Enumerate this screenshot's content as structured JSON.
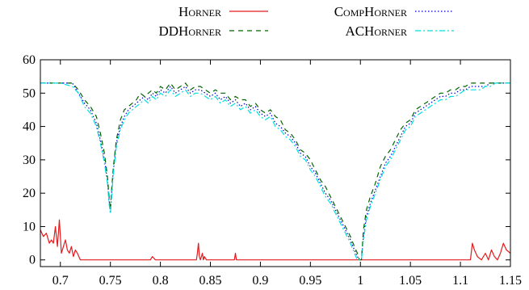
{
  "chart_data": {
    "type": "line",
    "title": "",
    "xlabel": "",
    "ylabel": "",
    "xlim": [
      0.68,
      1.15
    ],
    "ylim": [
      -2,
      60
    ],
    "xticks": [
      "0.7",
      "0.75",
      "0.8",
      "0.85",
      "0.9",
      "0.95",
      "1",
      "1.05",
      "1.1",
      "1.15"
    ],
    "yticks": [
      "0",
      "10",
      "20",
      "30",
      "40",
      "50",
      "60"
    ],
    "grid": false,
    "legend_position": "top",
    "series": [
      {
        "name": "Horner",
        "color": "#e41a1c",
        "dash": "solid",
        "x": [
          0.68,
          0.683,
          0.686,
          0.689,
          0.691,
          0.693,
          0.695,
          0.697,
          0.699,
          0.701,
          0.703,
          0.705,
          0.707,
          0.709,
          0.711,
          0.713,
          0.715,
          0.717,
          0.72,
          0.79,
          0.792,
          0.795,
          0.8,
          0.836,
          0.837,
          0.838,
          0.839,
          0.84,
          0.842,
          0.843,
          0.844,
          0.846,
          0.874,
          0.875,
          0.876,
          1.11,
          1.112,
          1.114,
          1.117,
          1.121,
          1.125,
          1.128,
          1.131,
          1.134,
          1.137,
          1.14,
          1.143,
          1.146,
          1.15
        ],
        "y": [
          9,
          7,
          8,
          5,
          6,
          5,
          10,
          4,
          12,
          2,
          4,
          6,
          3,
          2,
          4,
          1,
          3,
          2,
          0,
          0,
          1,
          0,
          0,
          0,
          2,
          5,
          1,
          0,
          2,
          0,
          1,
          0,
          0,
          2,
          0,
          0,
          5,
          3,
          1,
          0,
          2,
          0,
          3,
          1,
          0,
          2,
          5,
          3,
          2
        ]
      },
      {
        "name": "CompHorner",
        "color": "#0000cc",
        "dash": "dotted",
        "x": [
          0.68,
          0.7,
          0.712,
          0.718,
          0.724,
          0.73,
          0.736,
          0.74,
          0.744,
          0.747,
          0.749,
          0.75,
          0.751,
          0.753,
          0.756,
          0.76,
          0.764,
          0.768,
          0.772,
          0.776,
          0.78,
          0.784,
          0.788,
          0.792,
          0.796,
          0.8,
          0.805,
          0.81,
          0.815,
          0.82,
          0.825,
          0.83,
          0.835,
          0.84,
          0.845,
          0.85,
          0.855,
          0.86,
          0.865,
          0.87,
          0.875,
          0.88,
          0.885,
          0.89,
          0.895,
          0.9,
          0.905,
          0.91,
          0.915,
          0.92,
          0.925,
          0.93,
          0.935,
          0.94,
          0.945,
          0.95,
          0.955,
          0.96,
          0.965,
          0.97,
          0.975,
          0.98,
          0.985,
          0.99,
          0.994,
          0.997,
          0.999,
          1.0,
          1.001,
          1.003,
          1.006,
          1.01,
          1.015,
          1.02,
          1.025,
          1.03,
          1.035,
          1.04,
          1.045,
          1.05,
          1.055,
          1.06,
          1.065,
          1.07,
          1.075,
          1.08,
          1.085,
          1.09,
          1.095,
          1.1,
          1.105,
          1.11,
          1.115,
          1.12,
          1.125,
          1.13,
          1.135,
          1.14,
          1.145,
          1.15
        ],
        "y": [
          53,
          53,
          53,
          50,
          47,
          45,
          41,
          36,
          30,
          24,
          17,
          14,
          19,
          27,
          35,
          40,
          43,
          45,
          46,
          47,
          48,
          49,
          48,
          50,
          49,
          51,
          50,
          52,
          50,
          51,
          52,
          50,
          51,
          51,
          50,
          49,
          50,
          48,
          49,
          47,
          48,
          46,
          47,
          45,
          46,
          44,
          43,
          44,
          41,
          40,
          38,
          37,
          35,
          32,
          31,
          28,
          26,
          23,
          20,
          18,
          15,
          12,
          9,
          6,
          3,
          1,
          0,
          0,
          0,
          7,
          13,
          17,
          21,
          25,
          29,
          31,
          34,
          37,
          40,
          41,
          44,
          45,
          46,
          47,
          48,
          49,
          49,
          50,
          50,
          51,
          51,
          52,
          52,
          52,
          52,
          53,
          53,
          53,
          53,
          53
        ]
      },
      {
        "name": "DDHorner",
        "color": "#006400",
        "dash": "dashed",
        "x": [
          0.68,
          0.7,
          0.712,
          0.718,
          0.724,
          0.73,
          0.736,
          0.74,
          0.744,
          0.747,
          0.749,
          0.75,
          0.751,
          0.753,
          0.756,
          0.76,
          0.764,
          0.768,
          0.772,
          0.776,
          0.78,
          0.784,
          0.788,
          0.792,
          0.796,
          0.8,
          0.805,
          0.81,
          0.815,
          0.82,
          0.825,
          0.83,
          0.835,
          0.84,
          0.845,
          0.85,
          0.855,
          0.86,
          0.865,
          0.87,
          0.875,
          0.88,
          0.885,
          0.89,
          0.895,
          0.9,
          0.905,
          0.91,
          0.915,
          0.92,
          0.925,
          0.93,
          0.935,
          0.94,
          0.945,
          0.95,
          0.955,
          0.96,
          0.965,
          0.97,
          0.975,
          0.98,
          0.985,
          0.99,
          0.994,
          0.997,
          0.999,
          1.0,
          1.001,
          1.003,
          1.006,
          1.01,
          1.015,
          1.02,
          1.025,
          1.03,
          1.035,
          1.04,
          1.045,
          1.05,
          1.055,
          1.06,
          1.065,
          1.07,
          1.075,
          1.08,
          1.085,
          1.09,
          1.095,
          1.1,
          1.105,
          1.11,
          1.115,
          1.12,
          1.125,
          1.13,
          1.135,
          1.14,
          1.145,
          1.15
        ],
        "y": [
          53,
          53,
          53,
          51,
          48,
          46,
          43,
          38,
          32,
          25,
          18,
          15,
          20,
          28,
          36,
          42,
          45,
          46,
          47,
          48,
          50,
          49,
          50,
          51,
          50,
          52,
          51,
          53,
          51,
          52,
          53,
          51,
          52,
          52,
          51,
          50,
          51,
          50,
          50,
          48,
          49,
          48,
          48,
          46,
          47,
          45,
          44,
          45,
          43,
          42,
          39,
          38,
          36,
          33,
          32,
          30,
          27,
          24,
          22,
          19,
          16,
          13,
          10,
          7,
          4,
          2,
          0,
          0,
          0,
          9,
          15,
          19,
          23,
          28,
          31,
          33,
          36,
          39,
          41,
          42,
          45,
          46,
          47,
          48,
          49,
          50,
          50,
          51,
          51,
          52,
          52,
          53,
          53,
          53,
          53,
          53,
          53,
          53,
          53,
          53
        ]
      },
      {
        "name": "ACHorner",
        "color": "#00e0e0",
        "dash": "dashdot",
        "x": [
          0.68,
          0.7,
          0.712,
          0.718,
          0.724,
          0.73,
          0.736,
          0.74,
          0.744,
          0.747,
          0.749,
          0.75,
          0.751,
          0.753,
          0.756,
          0.76,
          0.764,
          0.768,
          0.772,
          0.776,
          0.78,
          0.784,
          0.788,
          0.792,
          0.796,
          0.8,
          0.805,
          0.81,
          0.815,
          0.82,
          0.825,
          0.83,
          0.835,
          0.84,
          0.845,
          0.85,
          0.855,
          0.86,
          0.865,
          0.87,
          0.875,
          0.88,
          0.885,
          0.89,
          0.895,
          0.9,
          0.905,
          0.91,
          0.915,
          0.92,
          0.925,
          0.93,
          0.935,
          0.94,
          0.945,
          0.95,
          0.955,
          0.96,
          0.965,
          0.97,
          0.975,
          0.98,
          0.985,
          0.99,
          0.994,
          0.997,
          0.999,
          1.0,
          1.001,
          1.003,
          1.006,
          1.01,
          1.015,
          1.02,
          1.025,
          1.03,
          1.035,
          1.04,
          1.045,
          1.05,
          1.055,
          1.06,
          1.065,
          1.07,
          1.075,
          1.08,
          1.085,
          1.09,
          1.095,
          1.1,
          1.105,
          1.11,
          1.115,
          1.12,
          1.125,
          1.13,
          1.135,
          1.14,
          1.145,
          1.15
        ],
        "y": [
          53,
          53,
          52,
          50,
          46,
          44,
          40,
          35,
          29,
          23,
          16,
          14,
          18,
          26,
          34,
          39,
          42,
          44,
          45,
          46,
          47,
          48,
          47,
          49,
          48,
          50,
          49,
          51,
          49,
          50,
          51,
          49,
          50,
          50,
          49,
          48,
          49,
          47,
          48,
          46,
          47,
          45,
          46,
          44,
          45,
          43,
          42,
          43,
          40,
          39,
          37,
          36,
          34,
          31,
          30,
          27,
          25,
          22,
          19,
          17,
          14,
          11,
          8,
          5,
          2,
          0,
          0,
          0,
          0,
          6,
          12,
          16,
          20,
          24,
          28,
          30,
          33,
          36,
          39,
          40,
          43,
          44,
          45,
          46,
          47,
          48,
          48,
          49,
          49,
          50,
          51,
          51,
          51,
          51,
          52,
          52,
          53,
          53,
          53,
          53
        ]
      }
    ]
  }
}
